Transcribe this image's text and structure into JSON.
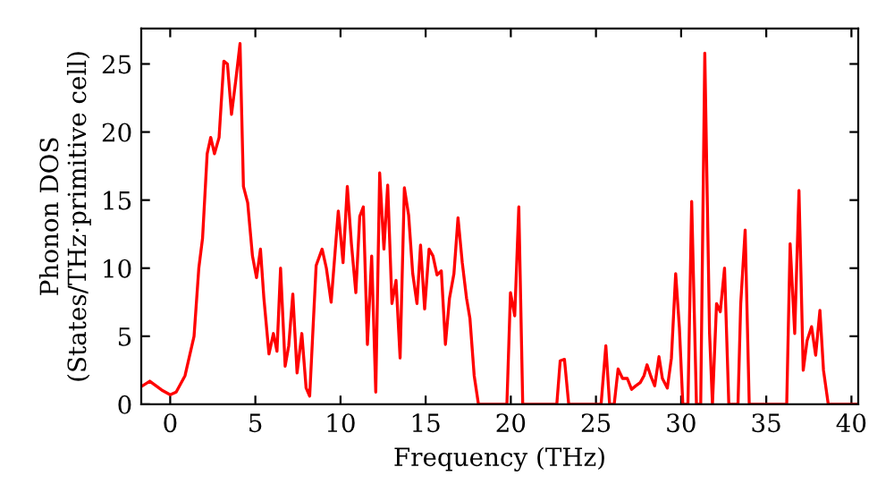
{
  "chart_data": {
    "type": "line",
    "xlabel": "Frequency (THz)",
    "ylabel": "Phonon DOS\n(States/THz·primitive cell)",
    "xlim": [
      -1.7,
      40.4
    ],
    "ylim": [
      0,
      27.6
    ],
    "xticks": [
      0,
      5,
      10,
      15,
      20,
      25,
      30,
      35,
      40
    ],
    "yticks": [
      0,
      5,
      10,
      15,
      20,
      25
    ],
    "grid": false,
    "legend": false,
    "marker": "none",
    "line_style": "solid",
    "series": [
      {
        "color": "#ff0000",
        "x": [
          -1.7,
          -1.2,
          -0.5,
          0,
          0.35,
          0.87,
          1.4,
          1.68,
          1.9,
          2.17,
          2.38,
          2.6,
          2.87,
          3.15,
          3.36,
          3.6,
          3.85,
          4.1,
          4.3,
          4.55,
          4.83,
          5.07,
          5.3,
          5.5,
          5.8,
          6.06,
          6.27,
          6.48,
          6.75,
          6.96,
          7.2,
          7.45,
          7.73,
          7.98,
          8.19,
          8.57,
          8.92,
          9.17,
          9.45,
          9.87,
          10.15,
          10.4,
          10.64,
          10.9,
          11.13,
          11.34,
          11.58,
          11.83,
          12.07,
          12.3,
          12.55,
          12.77,
          13.02,
          13.26,
          13.5,
          13.75,
          14.0,
          14.24,
          14.49,
          14.7,
          14.94,
          15.2,
          15.43,
          15.67,
          15.92,
          16.16,
          16.4,
          16.66,
          16.9,
          17.15,
          17.4,
          17.6,
          17.85,
          18.1,
          19.77,
          19.98,
          20.23,
          20.47,
          20.7,
          22.7,
          22.9,
          23.15,
          23.4,
          25.3,
          25.58,
          25.8,
          26.07,
          26.3,
          26.56,
          26.84,
          27.09,
          27.33,
          27.6,
          27.82,
          28.0,
          28.24,
          28.45,
          28.7,
          28.9,
          29.19,
          29.43,
          29.68,
          29.9,
          30.1,
          30.4,
          30.62,
          30.9,
          31.15,
          31.39,
          31.67,
          31.84,
          32.08,
          32.3,
          32.55,
          32.8,
          33.34,
          33.5,
          33.76,
          34.0,
          36.2,
          36.4,
          36.67,
          36.92,
          37.17,
          37.4,
          37.66,
          37.9,
          38.15,
          38.36,
          38.64,
          40.4
        ],
        "values": [
          1.3,
          1.7,
          1.05,
          0.7,
          0.9,
          2.1,
          5.0,
          10.0,
          12.2,
          18.4,
          19.6,
          18.4,
          19.6,
          25.2,
          25.0,
          21.3,
          23.8,
          26.5,
          16.0,
          14.8,
          10.9,
          9.3,
          11.4,
          7.8,
          3.7,
          5.2,
          3.9,
          10.0,
          2.8,
          4.3,
          8.1,
          2.3,
          5.2,
          1.2,
          0.6,
          10.2,
          11.4,
          10.0,
          7.5,
          14.2,
          10.4,
          16.0,
          11.8,
          8.2,
          13.8,
          14.5,
          4.4,
          10.9,
          0.9,
          17.0,
          11.4,
          16.1,
          7.4,
          9.1,
          3.4,
          15.9,
          13.9,
          9.6,
          7.4,
          11.7,
          7.0,
          11.4,
          10.9,
          9.5,
          9.8,
          4.4,
          7.8,
          9.6,
          13.7,
          10.4,
          7.8,
          6.3,
          2.1,
          0,
          0,
          8.2,
          6.5,
          14.5,
          0,
          0,
          3.2,
          3.3,
          0,
          0,
          4.3,
          0,
          0,
          2.6,
          1.9,
          1.9,
          1.1,
          1.35,
          1.6,
          2.1,
          2.9,
          2.0,
          1.35,
          3.5,
          1.9,
          1.2,
          3.4,
          9.6,
          5.6,
          0,
          0,
          14.9,
          0,
          0,
          25.8,
          5.2,
          0,
          7.4,
          6.8,
          10.0,
          0,
          0,
          7.4,
          12.8,
          0,
          0,
          11.8,
          5.2,
          15.7,
          2.5,
          4.7,
          5.7,
          3.6,
          6.9,
          2.5,
          0,
          0
        ]
      }
    ]
  }
}
